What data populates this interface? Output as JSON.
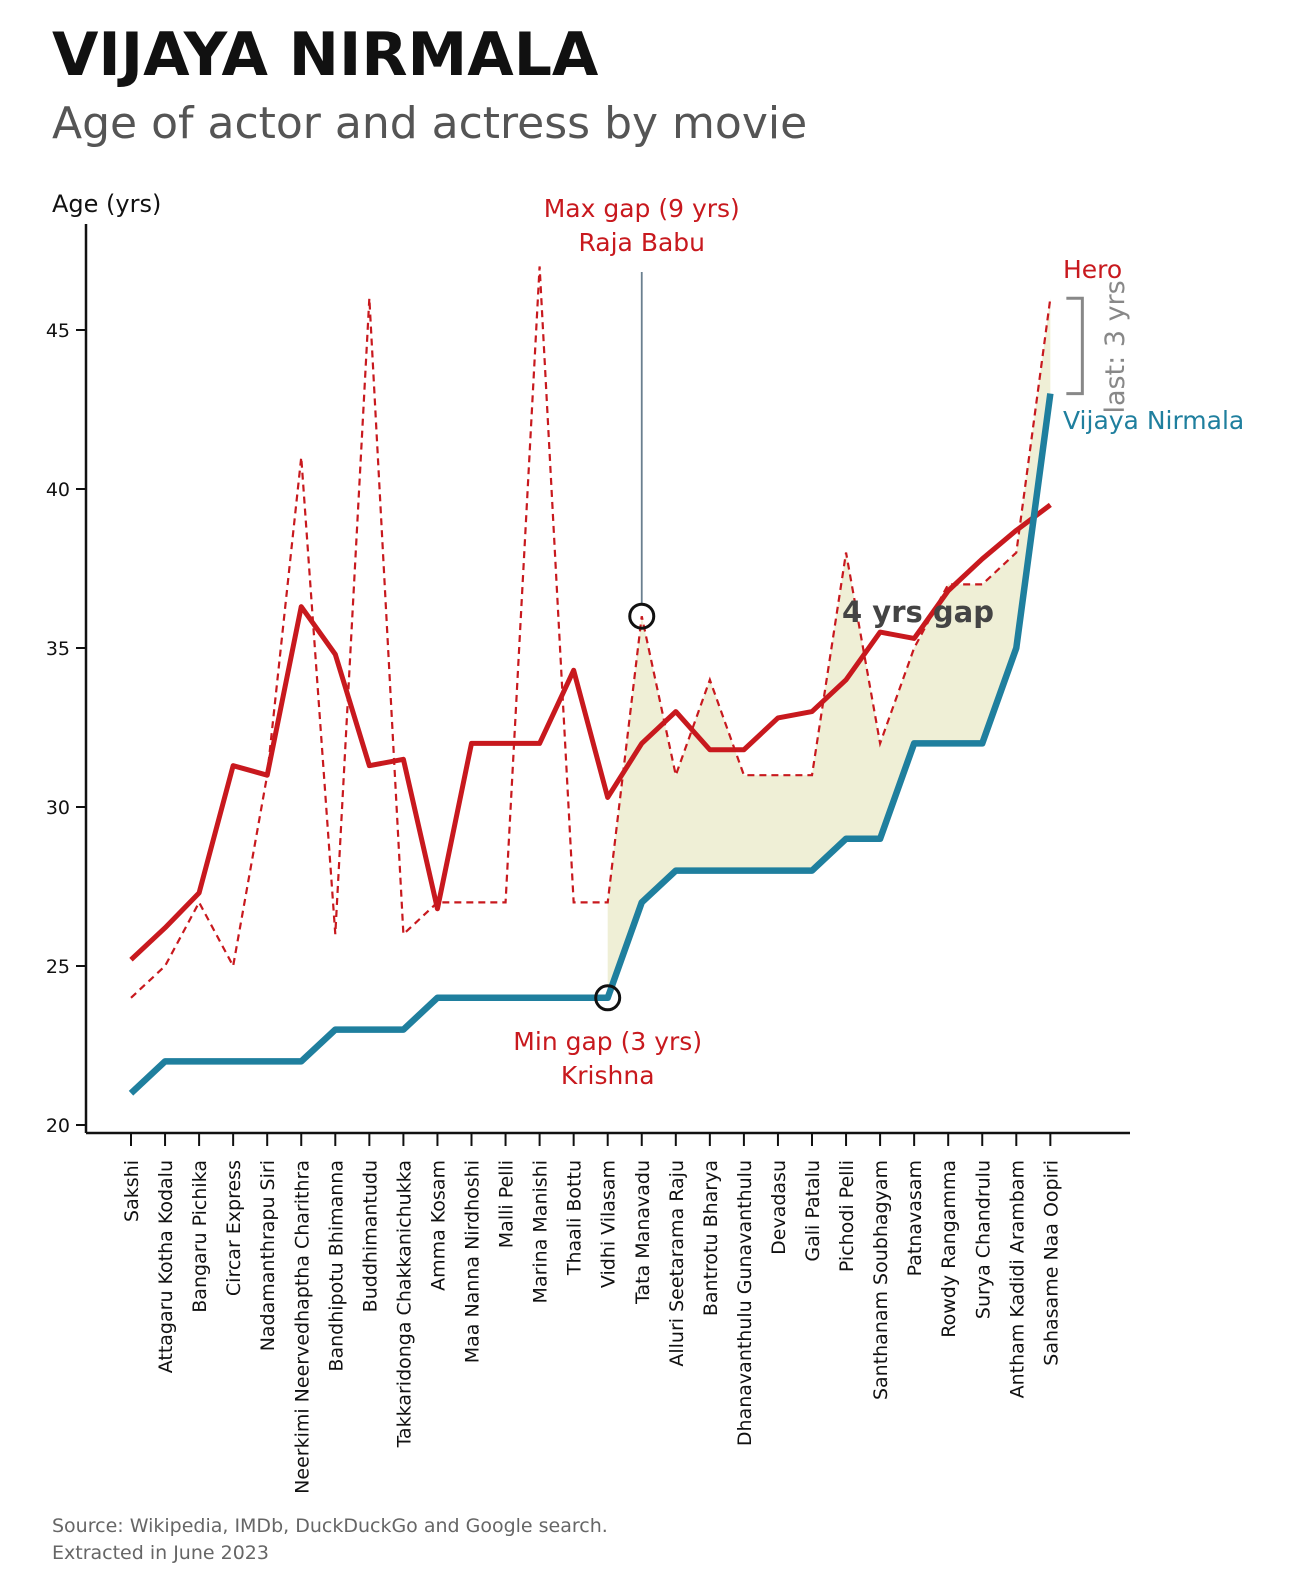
{
  "header": {
    "title": "VIJAYA NIRMALA",
    "subtitle": "Age of actor and actress by movie"
  },
  "footer": {
    "source": "Source: Wikipedia, IMDb, DuckDuckGo and Google search.",
    "extracted": "Extracted in June 2023"
  },
  "colors": {
    "hero": "#c8191e",
    "actress": "#1f7f9e",
    "fill": "#efefd6",
    "axis": "#111111",
    "annotation_line": "#6a7f8f",
    "bracket": "#888888",
    "gap_label": "#444444"
  },
  "annotations": {
    "max_gap_line1": "Max gap (9 yrs)",
    "max_gap_line2": "Raja Babu",
    "min_gap_line1": "Min gap (3 yrs)",
    "min_gap_line2": "Krishna",
    "gap_label": "4 yrs gap",
    "last_label": "last: 3 yrs",
    "hero_label": "Hero",
    "actress_label": "Vijaya Nirmala"
  },
  "chart_data": {
    "type": "line",
    "ylabel": "Age (yrs)",
    "xlabel": "",
    "ylim": [
      20,
      48
    ],
    "yticks": [
      20,
      25,
      30,
      35,
      40,
      45
    ],
    "categories": [
      "Sakshi",
      "Attagaru Kotha Kodalu",
      "Bangaru Pichika",
      "Circar Express",
      "Nadamanthrapu Siri",
      "Neerkimi Neervedhaptha Charithra",
      "Bandhipotu Bhimanna",
      "Buddhimantudu",
      "Takkaridonga Chakkanichukka",
      "Amma Kosam",
      "Maa Nanna Nirdhoshi",
      "Malli Pelli",
      "Marina Manishi",
      "Thaali Bottu",
      "Vidhi Vilasam",
      "Tata Manavadu",
      "Alluri Seetarama Raju",
      "Bantrotu Bharya",
      "Dhanavanthulu Gunavanthulu",
      "Devadasu",
      "Gali Patalu",
      "Pichodi Pelli",
      "Santhanam Soubhagyam",
      "Patnavasam",
      "Rowdy Rangamma",
      "Surya Chandrulu",
      "Antham Kadidi Arambam",
      "Sahasame Naa Oopiri"
    ],
    "series": [
      {
        "name": "Hero",
        "style": "dashed",
        "values": [
          24,
          25,
          27,
          25,
          31,
          41,
          26,
          46,
          26,
          27,
          27,
          27,
          47,
          27,
          27,
          36,
          31,
          34,
          31,
          31,
          31,
          38,
          32,
          35,
          37,
          37,
          38,
          46
        ]
      },
      {
        "name": "Hero (trend)",
        "style": "bold",
        "values": [
          25.2,
          26.2,
          27.3,
          31.3,
          31.0,
          36.3,
          34.8,
          31.3,
          31.5,
          26.8,
          32.0,
          32.0,
          32.0,
          34.3,
          30.3,
          32.0,
          33.0,
          31.8,
          31.8,
          32.8,
          33.0,
          34.0,
          35.5,
          35.3,
          36.8,
          37.8,
          38.7,
          39.5
        ]
      },
      {
        "name": "Vijaya Nirmala",
        "style": "bold",
        "values": [
          21,
          22,
          22,
          22,
          22,
          22,
          23,
          23,
          23,
          24,
          24,
          24,
          24,
          24,
          24,
          27,
          28,
          28,
          28,
          28,
          28,
          29,
          29,
          32,
          32,
          32,
          35,
          43
        ]
      }
    ],
    "highlights": {
      "max_gap_index": 15,
      "min_gap_index": 14,
      "fill_from_index": 14
    }
  }
}
